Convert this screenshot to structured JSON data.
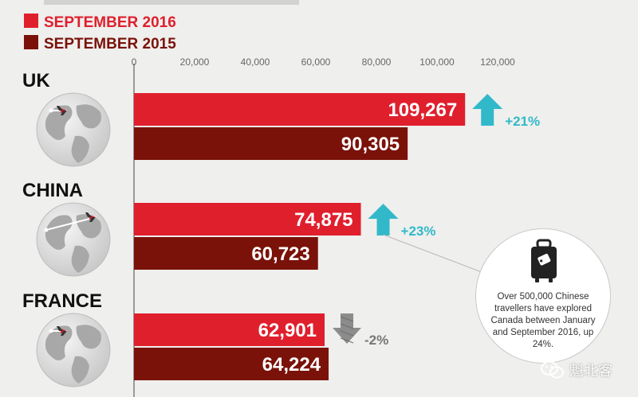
{
  "colors": {
    "sep2016": "#e01f2d",
    "sep2015": "#7a1209",
    "up_arrow": "#31b9c9",
    "down_arrow": "#8c8c8c",
    "axis": "#9a9a9a",
    "label": "#111111",
    "globe_light": "#e9e9e9",
    "globe_dark": "#a8a8a8"
  },
  "legend": [
    {
      "label": "SEPTEMBER 2016",
      "color_key": "sep2016"
    },
    {
      "label": "SEPTEMBER 2015",
      "color_key": "sep2015"
    }
  ],
  "chart_data": {
    "type": "bar",
    "orientation": "horizontal",
    "title": "",
    "xlabel": "",
    "ylabel": "",
    "xlim": [
      0,
      120000
    ],
    "ticks": [
      0,
      20000,
      40000,
      60000,
      80000,
      100000,
      120000
    ],
    "tick_labels": [
      "0",
      "20,000",
      "40,000",
      "60,000",
      "80,000",
      "100,000",
      "120,000"
    ],
    "categories": [
      "UK",
      "CHINA",
      "FRANCE"
    ],
    "series": [
      {
        "name": "SEPTEMBER 2016",
        "values": [
          109267,
          74875,
          62901
        ],
        "labels": [
          "109,267",
          "74,875",
          "62,901"
        ]
      },
      {
        "name": "SEPTEMBER 2015",
        "values": [
          90305,
          60723,
          64224
        ],
        "labels": [
          "90,305",
          "60,723",
          "64,224"
        ]
      }
    ],
    "changes": [
      {
        "label": "+21%",
        "direction": "up"
      },
      {
        "label": "+23%",
        "direction": "up"
      },
      {
        "label": "-2%",
        "direction": "down"
      }
    ]
  },
  "callout": {
    "icon": "suitcase-icon",
    "text": "Over 500,000 Chinese travellers have explored Canada between January and September 2016, up 24%."
  },
  "watermark": {
    "icon": "wechat-icon",
    "text": "魁北客"
  }
}
